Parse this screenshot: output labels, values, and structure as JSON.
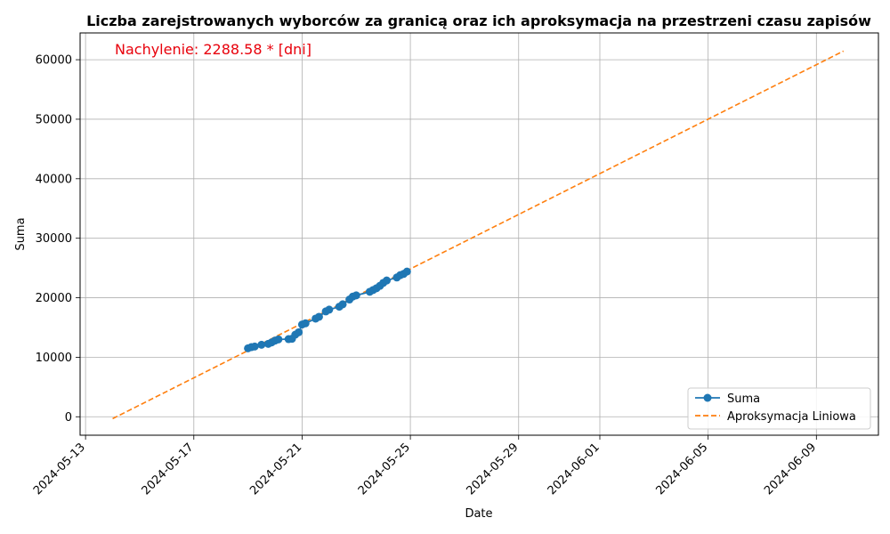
{
  "chart_data": {
    "type": "line",
    "title": "Liczba zarejstrowanych wyborców za granicą oraz ich aproksymacja na przestrzeni czasu zapisów",
    "xlabel": "Date",
    "ylabel": "Suma",
    "annotation": {
      "text": "Nachylenie: 2288.58 * [dni]",
      "color": "#e8000b"
    },
    "x_axis": {
      "kind": "date",
      "range": [
        "2024-05-12T19:10",
        "2024-06-11T07:00"
      ],
      "ticks": [
        "2024-05-13",
        "2024-05-17",
        "2024-05-21",
        "2024-05-25",
        "2024-05-29",
        "2024-06-01",
        "2024-06-05",
        "2024-06-09"
      ],
      "tick_rotation_deg": 45
    },
    "y_axis": {
      "range": [
        -3100,
        64500
      ],
      "ticks": [
        0,
        10000,
        20000,
        30000,
        40000,
        50000,
        60000
      ],
      "tick_labels": [
        "0",
        "10000",
        "20000",
        "30000",
        "40000",
        "50000",
        "60000"
      ]
    },
    "grid": true,
    "legend": {
      "position": "bottom-right",
      "entries": [
        "Suma",
        "Aproksymacja Liniowa"
      ]
    },
    "series": [
      {
        "name": "Suma",
        "style": "line-marker",
        "color": "#1f77b4",
        "points": [
          [
            "2024-05-19T00:00",
            11500
          ],
          [
            "2024-05-19T03:00",
            11700
          ],
          [
            "2024-05-19T06:00",
            11800
          ],
          [
            "2024-05-19T12:00",
            12100
          ],
          [
            "2024-05-19T18:00",
            12250
          ],
          [
            "2024-05-19T21:00",
            12500
          ],
          [
            "2024-05-20T00:00",
            12800
          ],
          [
            "2024-05-20T03:00",
            13000
          ],
          [
            "2024-05-20T12:00",
            13050
          ],
          [
            "2024-05-20T15:00",
            13100
          ],
          [
            "2024-05-20T18:00",
            13800
          ],
          [
            "2024-05-20T21:00",
            14200
          ],
          [
            "2024-05-21T00:00",
            15500
          ],
          [
            "2024-05-21T03:00",
            15700
          ],
          [
            "2024-05-21T12:00",
            16500
          ],
          [
            "2024-05-21T15:00",
            16800
          ],
          [
            "2024-05-21T21:00",
            17700
          ],
          [
            "2024-05-22T00:00",
            18000
          ],
          [
            "2024-05-22T09:00",
            18500
          ],
          [
            "2024-05-22T12:00",
            18900
          ],
          [
            "2024-05-22T18:00",
            19700
          ],
          [
            "2024-05-22T21:00",
            20200
          ],
          [
            "2024-05-23T00:00",
            20400
          ],
          [
            "2024-05-23T12:00",
            21000
          ],
          [
            "2024-05-23T15:00",
            21300
          ],
          [
            "2024-05-23T18:00",
            21600
          ],
          [
            "2024-05-23T21:00",
            22000
          ],
          [
            "2024-05-24T00:00",
            22500
          ],
          [
            "2024-05-24T03:00",
            22900
          ],
          [
            "2024-05-24T12:00",
            23400
          ],
          [
            "2024-05-24T15:00",
            23800
          ],
          [
            "2024-05-24T18:00",
            24000
          ],
          [
            "2024-05-24T21:00",
            24400
          ]
        ]
      },
      {
        "name": "Aproksymacja Liniowa",
        "style": "dashed",
        "color": "#ff7f0e",
        "points": [
          [
            "2024-05-14T00:00",
            -320
          ],
          [
            "2024-06-10T00:00",
            61450
          ]
        ]
      }
    ]
  }
}
